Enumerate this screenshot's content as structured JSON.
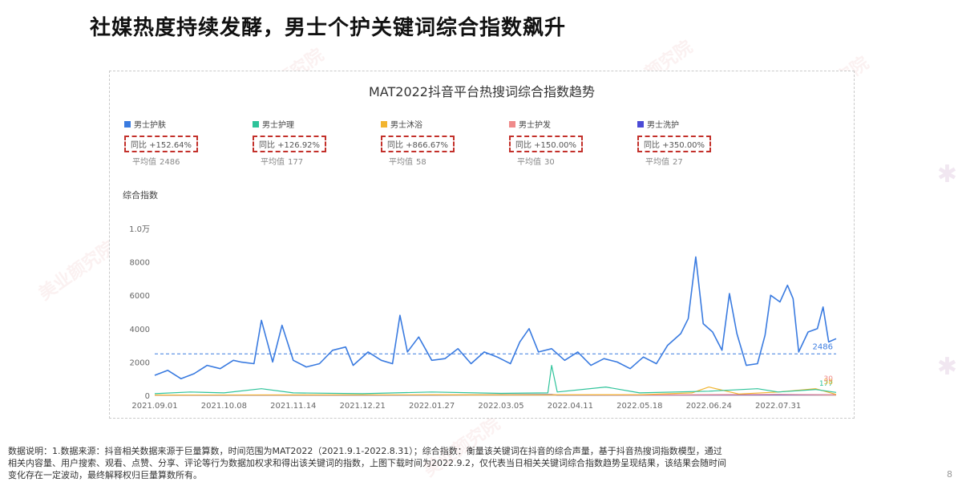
{
  "slide": {
    "title": "社媒热度持续发酵，男士个护关键词综合指数飙升",
    "watermark": "美业颜究院",
    "page_number": "8",
    "footnote": [
      "数据说明：1.数据来源：抖音相关数据来源于巨量算数，时间范围为MAT2022（2021.9.1-2022.8.31）；综合指数：衡量该关键词在抖音的综合声量，基于抖音热搜词指数模型，通过",
      "相关内容量、用户搜索、观看、点赞、分享、评论等行为数据加权求和得出该关键词的指数，上图下载时间为2022.9.2，仅代表当日相关关键词综合指数趋势呈现结果，该结果会随时间",
      "变化存在一定波动，最终解释权归巨量算数所有。"
    ]
  },
  "legend": [
    {
      "name": "男士护肤",
      "yoy": "同比 +152.64%",
      "avg_label": "平均值",
      "avg": "2486",
      "color": "#3a7be0"
    },
    {
      "name": "男士护理",
      "yoy": "同比 +126.92%",
      "avg_label": "平均值",
      "avg": "177",
      "color": "#2ec39a"
    },
    {
      "name": "男士沐浴",
      "yoy": "同比 +866.67%",
      "avg_label": "平均值",
      "avg": "58",
      "color": "#f2b530"
    },
    {
      "name": "男士护发",
      "yoy": "同比 +150.00%",
      "avg_label": "平均值",
      "avg": "30",
      "color": "#ef8a8a"
    },
    {
      "name": "男士洗护",
      "yoy": "同比 +350.00%",
      "avg_label": "平均值",
      "avg": "27",
      "color": "#4b4bd6"
    }
  ],
  "chart_data": {
    "type": "line",
    "title": "MAT2022抖音平台热搜词综合指数趋势",
    "ylabel": "综合指数",
    "ylim": [
      0,
      10000
    ],
    "yticks": [
      {
        "value": 0,
        "label": "0"
      },
      {
        "value": 2000,
        "label": "2000"
      },
      {
        "value": 4000,
        "label": "4000"
      },
      {
        "value": 6000,
        "label": "6000"
      },
      {
        "value": 8000,
        "label": "8000"
      },
      {
        "value": 10000,
        "label": "1.0万"
      }
    ],
    "x_ticks": [
      "2021.09.01",
      "2021.10.08",
      "2021.11.14",
      "2021.12.21",
      "2022.01.27",
      "2022.03.05",
      "2022.04.11",
      "2022.05.18",
      "2022.06.24",
      "2022.07.31"
    ],
    "x_range": [
      "2021.09.01",
      "2022.08.31"
    ],
    "average_line": {
      "series": "男士护肤",
      "value": 2486,
      "label": "2486"
    },
    "end_labels": [
      "177",
      "58",
      "30"
    ],
    "grid": false,
    "series": [
      {
        "name": "男士护肤",
        "color": "#3a7be0",
        "points": [
          [
            "2021.09.01",
            1200
          ],
          [
            "2021.09.08",
            1500
          ],
          [
            "2021.09.15",
            1000
          ],
          [
            "2021.09.22",
            1300
          ],
          [
            "2021.09.29",
            1800
          ],
          [
            "2021.10.06",
            1600
          ],
          [
            "2021.10.13",
            2100
          ],
          [
            "2021.10.17",
            2000
          ],
          [
            "2021.10.24",
            1900
          ],
          [
            "2021.10.28",
            4500
          ],
          [
            "2021.11.03",
            2000
          ],
          [
            "2021.11.08",
            4200
          ],
          [
            "2021.11.14",
            2100
          ],
          [
            "2021.11.21",
            1700
          ],
          [
            "2021.11.28",
            1900
          ],
          [
            "2021.12.05",
            2700
          ],
          [
            "2021.12.12",
            2900
          ],
          [
            "2021.12.16",
            1800
          ],
          [
            "2021.12.24",
            2600
          ],
          [
            "2021.12.31",
            2100
          ],
          [
            "2022.01.06",
            1900
          ],
          [
            "2022.01.10",
            4800
          ],
          [
            "2022.01.14",
            2600
          ],
          [
            "2022.01.20",
            3500
          ],
          [
            "2022.01.27",
            2100
          ],
          [
            "2022.02.03",
            2200
          ],
          [
            "2022.02.10",
            2800
          ],
          [
            "2022.02.17",
            1900
          ],
          [
            "2022.02.24",
            2600
          ],
          [
            "2022.03.03",
            2300
          ],
          [
            "2022.03.10",
            1900
          ],
          [
            "2022.03.15",
            3200
          ],
          [
            "2022.03.20",
            4000
          ],
          [
            "2022.03.25",
            2600
          ],
          [
            "2022.04.01",
            2800
          ],
          [
            "2022.04.08",
            2100
          ],
          [
            "2022.04.15",
            2600
          ],
          [
            "2022.04.22",
            1800
          ],
          [
            "2022.04.29",
            2200
          ],
          [
            "2022.05.06",
            2000
          ],
          [
            "2022.05.13",
            1600
          ],
          [
            "2022.05.20",
            2300
          ],
          [
            "2022.05.27",
            1900
          ],
          [
            "2022.06.02",
            3000
          ],
          [
            "2022.06.09",
            3700
          ],
          [
            "2022.06.13",
            4600
          ],
          [
            "2022.06.17",
            8300
          ],
          [
            "2022.06.21",
            4300
          ],
          [
            "2022.06.26",
            3800
          ],
          [
            "2022.07.01",
            2700
          ],
          [
            "2022.07.05",
            6100
          ],
          [
            "2022.07.09",
            3700
          ],
          [
            "2022.07.14",
            1800
          ],
          [
            "2022.07.20",
            1900
          ],
          [
            "2022.07.24",
            3600
          ],
          [
            "2022.07.27",
            6000
          ],
          [
            "2022.08.01",
            5600
          ],
          [
            "2022.08.05",
            6600
          ],
          [
            "2022.08.08",
            5800
          ],
          [
            "2022.08.11",
            2600
          ],
          [
            "2022.08.16",
            3800
          ],
          [
            "2022.08.21",
            4000
          ],
          [
            "2022.08.24",
            5300
          ],
          [
            "2022.08.27",
            3200
          ],
          [
            "2022.08.31",
            3400
          ]
        ]
      },
      {
        "name": "男士护理",
        "color": "#2ec39a",
        "points": [
          [
            "2021.09.01",
            100
          ],
          [
            "2021.09.20",
            200
          ],
          [
            "2021.10.08",
            150
          ],
          [
            "2021.10.28",
            400
          ],
          [
            "2021.11.14",
            150
          ],
          [
            "2021.12.21",
            100
          ],
          [
            "2022.01.27",
            200
          ],
          [
            "2022.03.05",
            120
          ],
          [
            "2022.03.30",
            150
          ],
          [
            "2022.04.01",
            1800
          ],
          [
            "2022.04.04",
            200
          ],
          [
            "2022.04.30",
            500
          ],
          [
            "2022.05.18",
            150
          ],
          [
            "2022.06.24",
            250
          ],
          [
            "2022.07.20",
            400
          ],
          [
            "2022.07.31",
            200
          ],
          [
            "2022.08.20",
            350
          ],
          [
            "2022.08.31",
            177
          ]
        ]
      },
      {
        "name": "男士沐浴",
        "color": "#f2b530",
        "points": [
          [
            "2021.09.01",
            20
          ],
          [
            "2022.01.27",
            30
          ],
          [
            "2022.05.18",
            40
          ],
          [
            "2022.06.15",
            150
          ],
          [
            "2022.06.24",
            500
          ],
          [
            "2022.07.10",
            80
          ],
          [
            "2022.07.31",
            200
          ],
          [
            "2022.08.20",
            400
          ],
          [
            "2022.08.31",
            58
          ]
        ]
      },
      {
        "name": "男士护发",
        "color": "#ef8a8a",
        "points": [
          [
            "2021.09.01",
            20
          ],
          [
            "2022.01.27",
            30
          ],
          [
            "2022.05.18",
            25
          ],
          [
            "2022.07.31",
            60
          ],
          [
            "2022.08.31",
            30
          ]
        ]
      },
      {
        "name": "男士洗护",
        "color": "#4b4bd6",
        "points": [
          [
            "2021.09.01",
            10
          ],
          [
            "2022.01.27",
            15
          ],
          [
            "2022.04.01",
            60
          ],
          [
            "2022.04.04",
            15
          ],
          [
            "2022.07.31",
            30
          ],
          [
            "2022.08.31",
            27
          ]
        ]
      }
    ]
  }
}
